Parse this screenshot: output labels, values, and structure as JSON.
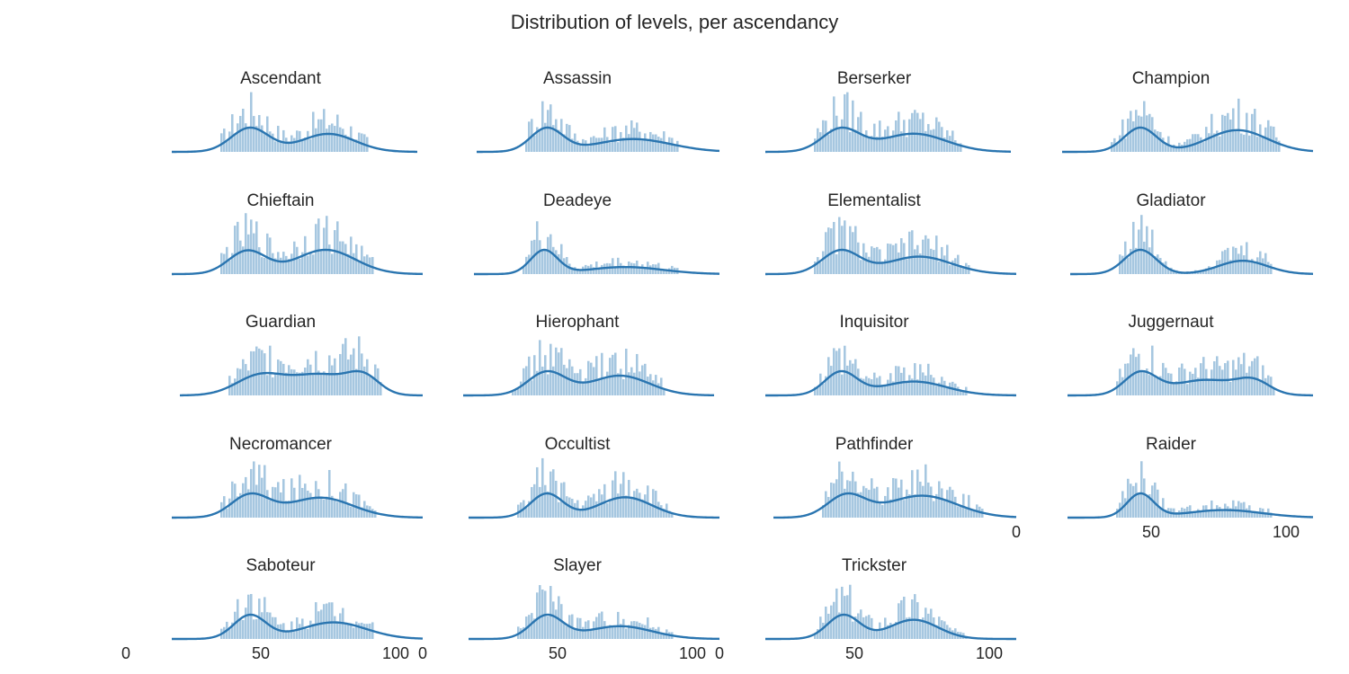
{
  "figure": {
    "title": "Distribution of levels, per ascendancy"
  },
  "colors": {
    "hist": "#a6c7e0",
    "kde": "#2a75b0"
  },
  "chart_data": {
    "type": "histogram_kde_facets",
    "xlim": [
      0,
      110
    ],
    "xticks": [
      0,
      50,
      100
    ],
    "grid": false,
    "panels": [
      {
        "name": "Ascendant",
        "peaks": [
          [
            46,
            1.0,
            7
          ],
          [
            75,
            0.75,
            10
          ]
        ],
        "xrange": [
          35,
          90
        ]
      },
      {
        "name": "Assassin",
        "peaks": [
          [
            46,
            1.0,
            6
          ],
          [
            78,
            0.55,
            14
          ]
        ],
        "xrange": [
          38,
          95
        ]
      },
      {
        "name": "Berserker",
        "peaks": [
          [
            45,
            1.0,
            7
          ],
          [
            72,
            0.8,
            12
          ]
        ],
        "xrange": [
          35,
          90
        ]
      },
      {
        "name": "Champion",
        "peaks": [
          [
            46,
            1.0,
            6
          ],
          [
            82,
            0.9,
            11
          ]
        ],
        "xrange": [
          35,
          98
        ]
      },
      {
        "name": "Chieftain",
        "peaks": [
          [
            45,
            0.95,
            7
          ],
          [
            74,
            1.0,
            11
          ]
        ],
        "xrange": [
          35,
          92
        ]
      },
      {
        "name": "Deadeye",
        "peaks": [
          [
            45,
            1.0,
            5
          ],
          [
            75,
            0.3,
            14
          ]
        ],
        "xrange": [
          37,
          95
        ]
      },
      {
        "name": "Elementalist",
        "peaks": [
          [
            45,
            1.0,
            7
          ],
          [
            74,
            0.75,
            12
          ]
        ],
        "xrange": [
          35,
          93
        ]
      },
      {
        "name": "Gladiator",
        "peaks": [
          [
            46,
            1.0,
            6
          ],
          [
            84,
            0.55,
            9
          ]
        ],
        "xrange": [
          38,
          95
        ]
      },
      {
        "name": "Guardian",
        "peaks": [
          [
            50,
            0.8,
            9
          ],
          [
            72,
            0.8,
            10
          ],
          [
            88,
            0.7,
            6
          ]
        ],
        "xrange": [
          38,
          95
        ]
      },
      {
        "name": "Hierophant",
        "peaks": [
          [
            46,
            1.0,
            7
          ],
          [
            73,
            0.85,
            11
          ]
        ],
        "xrange": [
          33,
          90
        ]
      },
      {
        "name": "Inquisitor",
        "peaks": [
          [
            45,
            1.0,
            6
          ],
          [
            72,
            0.6,
            12
          ]
        ],
        "xrange": [
          35,
          92
        ]
      },
      {
        "name": "Juggernaut",
        "peaks": [
          [
            46,
            1.0,
            6
          ],
          [
            70,
            0.7,
            12
          ],
          [
            88,
            0.55,
            6
          ]
        ],
        "xrange": [
          37,
          96
        ]
      },
      {
        "name": "Necromancer",
        "peaks": [
          [
            46,
            1.0,
            7
          ],
          [
            72,
            0.9,
            12
          ]
        ],
        "xrange": [
          35,
          93
        ]
      },
      {
        "name": "Occultist",
        "peaks": [
          [
            46,
            1.0,
            6
          ],
          [
            75,
            0.85,
            10
          ]
        ],
        "xrange": [
          35,
          93
        ]
      },
      {
        "name": "Pathfinder",
        "peaks": [
          [
            47,
            1.0,
            7
          ],
          [
            75,
            1.0,
            13
          ]
        ],
        "xrange": [
          38,
          98
        ]
      },
      {
        "name": "Raider",
        "peaks": [
          [
            46,
            1.0,
            5
          ],
          [
            77,
            0.32,
            14
          ]
        ],
        "xrange": [
          37,
          95
        ]
      },
      {
        "name": "Saboteur",
        "peaks": [
          [
            46,
            1.0,
            6
          ],
          [
            77,
            0.7,
            12
          ]
        ],
        "xrange": [
          35,
          92
        ]
      },
      {
        "name": "Slayer",
        "peaks": [
          [
            46,
            1.0,
            6
          ],
          [
            73,
            0.55,
            12
          ]
        ],
        "xrange": [
          35,
          93
        ]
      },
      {
        "name": "Trickster",
        "peaks": [
          [
            46,
            1.0,
            6
          ],
          [
            72,
            0.8,
            9
          ]
        ],
        "xrange": [
          35,
          92
        ]
      }
    ]
  }
}
